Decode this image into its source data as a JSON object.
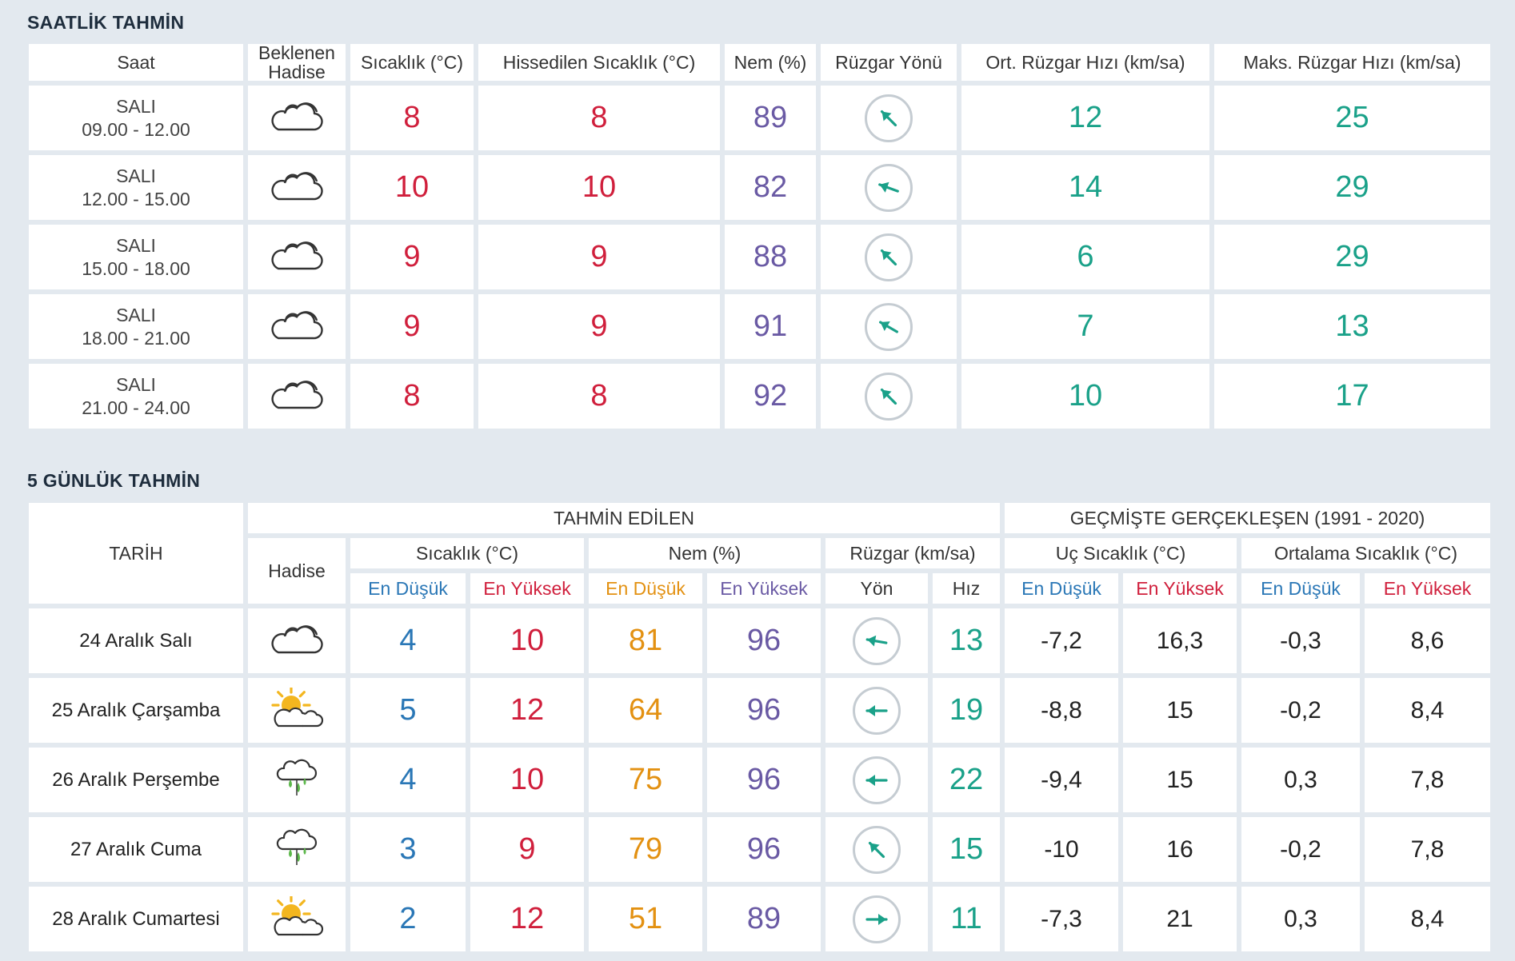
{
  "hourly": {
    "title": "SAATLİK TAHMİN",
    "headers": {
      "saat": "Saat",
      "hadise_1": "Beklenen",
      "hadise_2": "Hadise",
      "sicaklik": "Sıcaklık (°C)",
      "hissedilen": "Hissedilen Sıcaklık (°C)",
      "nem": "Nem (%)",
      "ruzgar_yonu": "Rüzgar Yönü",
      "ort_ruzgar": "Ort. Rüzgar Hızı (km/sa)",
      "maks_ruzgar": "Maks. Rüzgar Hızı (km/sa)"
    },
    "rows": [
      {
        "day": "SALI",
        "time": "09.00 - 12.00",
        "icon": "cloudy-icon",
        "temp": "8",
        "feels": "8",
        "humidity": "89",
        "wind_dir_deg": 225,
        "avg_wind": "12",
        "max_wind": "25"
      },
      {
        "day": "SALI",
        "time": "12.00 - 15.00",
        "icon": "cloudy-icon",
        "temp": "10",
        "feels": "10",
        "humidity": "82",
        "wind_dir_deg": 200,
        "avg_wind": "14",
        "max_wind": "29"
      },
      {
        "day": "SALI",
        "time": "15.00 - 18.00",
        "icon": "cloudy-icon",
        "temp": "9",
        "feels": "9",
        "humidity": "88",
        "wind_dir_deg": 225,
        "avg_wind": "6",
        "max_wind": "29"
      },
      {
        "day": "SALI",
        "time": "18.00 - 21.00",
        "icon": "cloudy-icon",
        "temp": "9",
        "feels": "9",
        "humidity": "91",
        "wind_dir_deg": 210,
        "avg_wind": "7",
        "max_wind": "13"
      },
      {
        "day": "SALI",
        "time": "21.00 - 24.00",
        "icon": "cloudy-icon",
        "temp": "8",
        "feels": "8",
        "humidity": "92",
        "wind_dir_deg": 225,
        "avg_wind": "10",
        "max_wind": "17"
      }
    ]
  },
  "daily": {
    "title": "5 GÜNLÜK TAHMİN",
    "headers": {
      "tarih": "TARİH",
      "tahmin_edilen": "TAHMİN EDİLEN",
      "gecmiste": "GEÇMİŞTE GERÇEKLEŞEN (1991 - 2020)",
      "hadise": "Hadise",
      "sicaklik": "Sıcaklık (°C)",
      "nem": "Nem (%)",
      "ruzgar": "Rüzgar (km/sa)",
      "uc_sicaklik": "Uç Sıcaklık (°C)",
      "ortalama_sicaklik": "Ortalama Sıcaklık (°C)",
      "en_dusuk": "En Düşük",
      "en_yuksek": "En Yüksek",
      "yon": "Yön",
      "hiz": "Hız"
    },
    "rows": [
      {
        "date": "24 Aralık Salı",
        "icon": "cloudy-icon",
        "temp_min": "4",
        "temp_max": "10",
        "hum_min": "81",
        "hum_max": "96",
        "wind_dir_deg": 190,
        "wind_speed": "13",
        "ext_min": "-7,2",
        "ext_max": "16,3",
        "avg_min": "-0,3",
        "avg_max": "8,6"
      },
      {
        "date": "25 Aralık Çarşamba",
        "icon": "partly-sunny-icon",
        "temp_min": "5",
        "temp_max": "12",
        "hum_min": "64",
        "hum_max": "96",
        "wind_dir_deg": 180,
        "wind_speed": "19",
        "ext_min": "-8,8",
        "ext_max": "15",
        "avg_min": "-0,2",
        "avg_max": "8,4"
      },
      {
        "date": "26 Aralık Perşembe",
        "icon": "rain-icon",
        "temp_min": "4",
        "temp_max": "10",
        "hum_min": "75",
        "hum_max": "96",
        "wind_dir_deg": 180,
        "wind_speed": "22",
        "ext_min": "-9,4",
        "ext_max": "15",
        "avg_min": "0,3",
        "avg_max": "7,8"
      },
      {
        "date": "27 Aralık Cuma",
        "icon": "rain-icon",
        "temp_min": "3",
        "temp_max": "9",
        "hum_min": "79",
        "hum_max": "96",
        "wind_dir_deg": 225,
        "wind_speed": "15",
        "ext_min": "-10",
        "ext_max": "16",
        "avg_min": "-0,2",
        "avg_max": "7,8"
      },
      {
        "date": "28 Aralık Cumartesi",
        "icon": "partly-sunny-icon",
        "temp_min": "2",
        "temp_max": "12",
        "hum_min": "51",
        "hum_max": "89",
        "wind_dir_deg": 0,
        "wind_speed": "11",
        "ext_min": "-7,3",
        "ext_max": "21",
        "avg_min": "0,3",
        "avg_max": "8,4"
      }
    ]
  },
  "colors": {
    "background": "#e3e9ef",
    "temp": "#d01f3c",
    "humidity": "#6a5aa4",
    "wind": "#1aa189",
    "low_temp": "#2a77b6",
    "low_humidity": "#e39112"
  }
}
